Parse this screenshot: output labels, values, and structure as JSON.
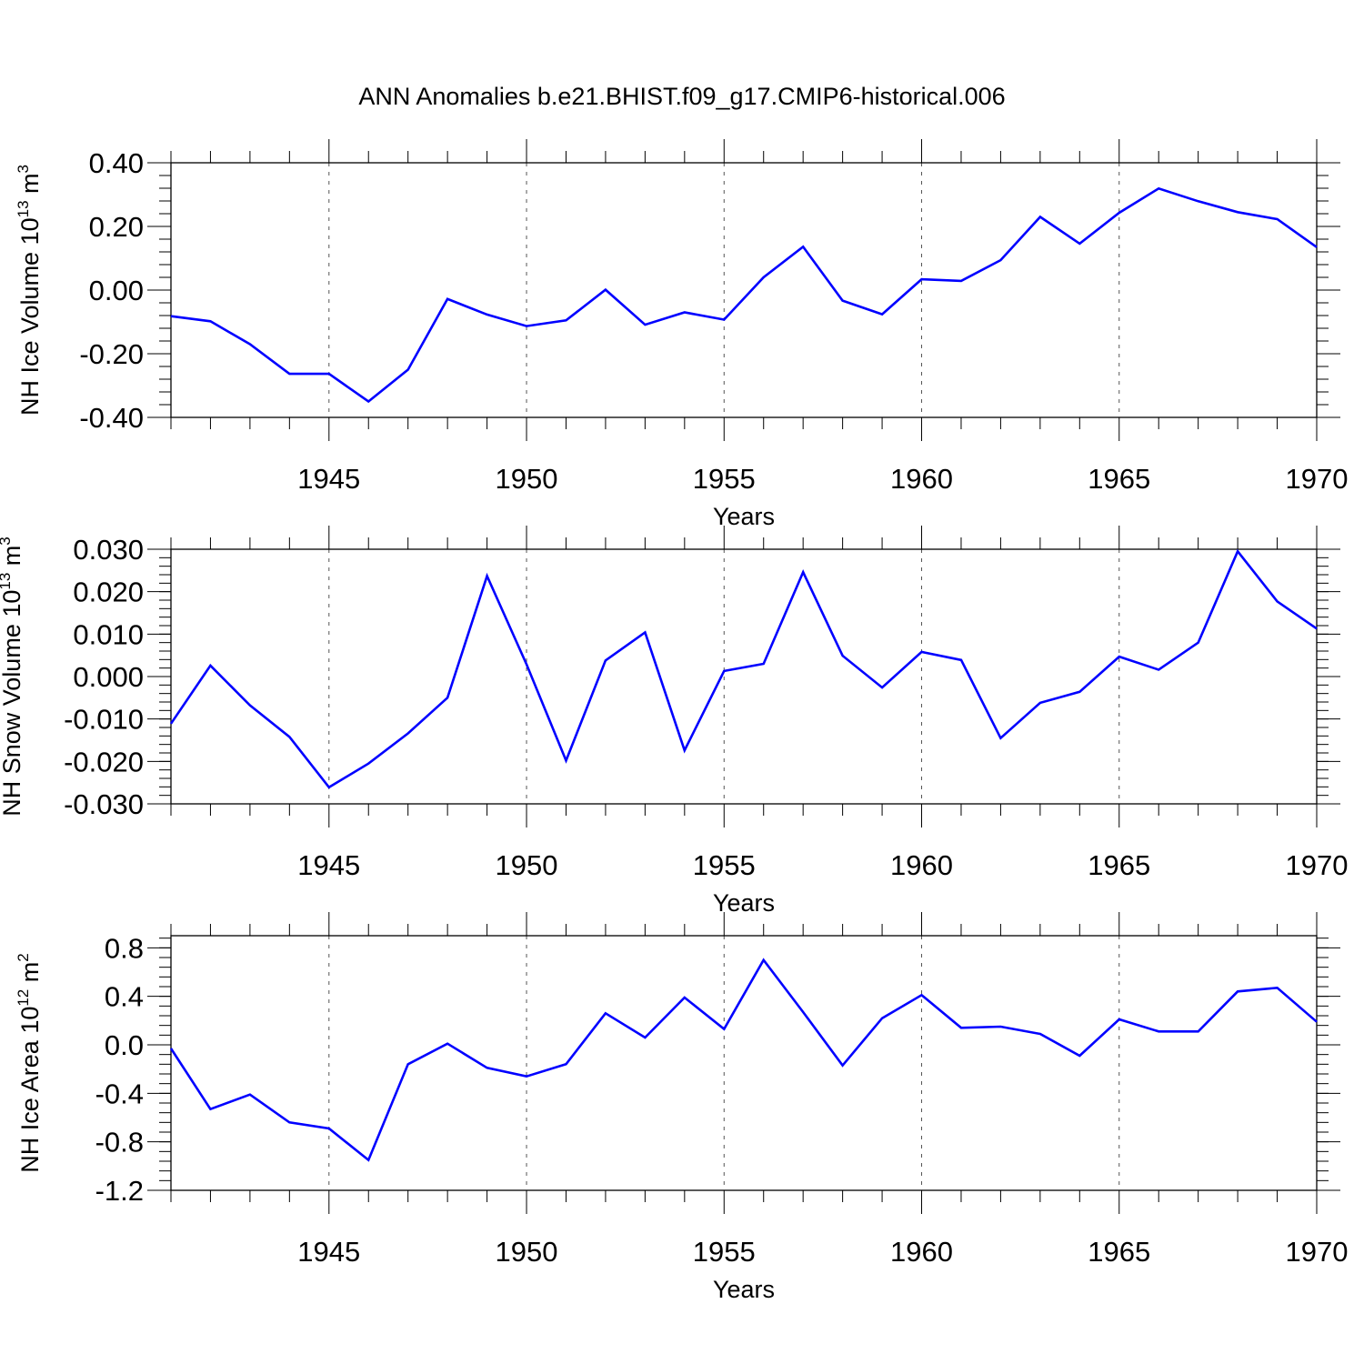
{
  "title": "ANN Anomalies b.e21.BHIST.f09_g17.CMIP6-historical.006",
  "colors": {
    "line": "#0000ff",
    "axis": "#000000",
    "grid": "#555555",
    "background": "#ffffff"
  },
  "chart_data": [
    {
      "type": "line",
      "ylabel": "NH Ice Volume 10",
      "ylabel_exp": "13",
      "ylabel_unit": " m",
      "ylabel_unit_exp": "3",
      "xlabel": "Years",
      "xlim": [
        1941,
        1970
      ],
      "ylim": [
        -0.4,
        0.4
      ],
      "yticks": [
        -0.4,
        -0.2,
        0.0,
        0.2,
        0.4
      ],
      "yticks_labels": [
        "-0.40",
        "-0.20",
        "0.00",
        "0.20",
        "0.40"
      ],
      "ytick_minor_step": 0.04,
      "xticks": [
        1945,
        1950,
        1955,
        1960,
        1965,
        1970
      ],
      "xticks_labels": [
        "1945",
        "1950",
        "1955",
        "1960",
        "1965",
        "1970"
      ],
      "grid": "dashed vertical at major x ticks",
      "x": [
        1941,
        1942,
        1943,
        1944,
        1945,
        1946,
        1947,
        1948,
        1949,
        1950,
        1951,
        1952,
        1953,
        1954,
        1955,
        1956,
        1957,
        1958,
        1959,
        1960,
        1961,
        1962,
        1963,
        1964,
        1965,
        1966,
        1967,
        1968,
        1969,
        1970
      ],
      "values": [
        -0.082,
        -0.098,
        -0.17,
        -0.263,
        -0.263,
        -0.35,
        -0.25,
        -0.028,
        -0.077,
        -0.113,
        -0.095,
        0.001,
        -0.109,
        -0.07,
        -0.093,
        0.04,
        0.136,
        -0.033,
        -0.076,
        0.034,
        0.029,
        0.094,
        0.23,
        0.146,
        0.243,
        0.319,
        0.279,
        0.245,
        0.223,
        0.135
      ]
    },
    {
      "type": "line",
      "ylabel": "NH Snow Volume 10",
      "ylabel_exp": "13",
      "ylabel_unit": " m",
      "ylabel_unit_exp": "3",
      "xlabel": "Years",
      "xlim": [
        1941,
        1970
      ],
      "ylim": [
        -0.03,
        0.03
      ],
      "yticks": [
        -0.03,
        -0.02,
        -0.01,
        0.0,
        0.01,
        0.02,
        0.03
      ],
      "yticks_labels": [
        "-0.030",
        "-0.020",
        "-0.010",
        "0.000",
        "0.010",
        "0.020",
        "0.030"
      ],
      "ytick_minor_step": 0.002,
      "xticks": [
        1945,
        1950,
        1955,
        1960,
        1965,
        1970
      ],
      "xticks_labels": [
        "1945",
        "1950",
        "1955",
        "1960",
        "1965",
        "1970"
      ],
      "grid": "dashed vertical at major x ticks",
      "x": [
        1941,
        1942,
        1943,
        1944,
        1945,
        1946,
        1947,
        1948,
        1949,
        1950,
        1951,
        1952,
        1953,
        1954,
        1955,
        1956,
        1957,
        1958,
        1959,
        1960,
        1961,
        1962,
        1963,
        1964,
        1965,
        1966,
        1967,
        1968,
        1969,
        1970
      ],
      "values": [
        -0.0111,
        0.0026,
        -0.0068,
        -0.0142,
        -0.0261,
        -0.0205,
        -0.0134,
        -0.005,
        0.0237,
        0.0029,
        -0.0198,
        0.0038,
        0.0104,
        -0.0174,
        0.0013,
        0.003,
        0.0246,
        0.0049,
        -0.0026,
        0.0058,
        0.0039,
        -0.0145,
        -0.0062,
        -0.0036,
        0.0047,
        0.0016,
        0.008,
        0.0295,
        0.0177,
        0.0113
      ]
    },
    {
      "type": "line",
      "ylabel": "NH Ice Area 10",
      "ylabel_exp": "12",
      "ylabel_unit": " m",
      "ylabel_unit_exp": "2",
      "xlabel": "Years",
      "xlim": [
        1941,
        1970
      ],
      "ylim": [
        -1.2,
        0.9
      ],
      "yticks": [
        -1.2,
        -0.8,
        -0.4,
        0.0,
        0.4,
        0.8
      ],
      "yticks_labels": [
        "-1.2",
        "-0.8",
        "-0.4",
        "0.0",
        "0.4",
        "0.8"
      ],
      "ytick_minor_step": 0.08,
      "xticks": [
        1945,
        1950,
        1955,
        1960,
        1965,
        1970
      ],
      "xticks_labels": [
        "1945",
        "1950",
        "1955",
        "1960",
        "1965",
        "1970"
      ],
      "grid": "dashed vertical at major x ticks",
      "x": [
        1941,
        1942,
        1943,
        1944,
        1945,
        1946,
        1947,
        1948,
        1949,
        1950,
        1951,
        1952,
        1953,
        1954,
        1955,
        1956,
        1957,
        1958,
        1959,
        1960,
        1961,
        1962,
        1963,
        1964,
        1965,
        1966,
        1967,
        1968,
        1969,
        1970
      ],
      "values": [
        -0.03,
        -0.53,
        -0.41,
        -0.64,
        -0.69,
        -0.95,
        -0.16,
        0.01,
        -0.19,
        -0.26,
        -0.16,
        0.26,
        0.06,
        0.39,
        0.13,
        0.7,
        0.27,
        -0.17,
        0.22,
        0.41,
        0.14,
        0.15,
        0.09,
        -0.09,
        0.21,
        0.11,
        0.11,
        0.44,
        0.47,
        0.19
      ]
    }
  ]
}
